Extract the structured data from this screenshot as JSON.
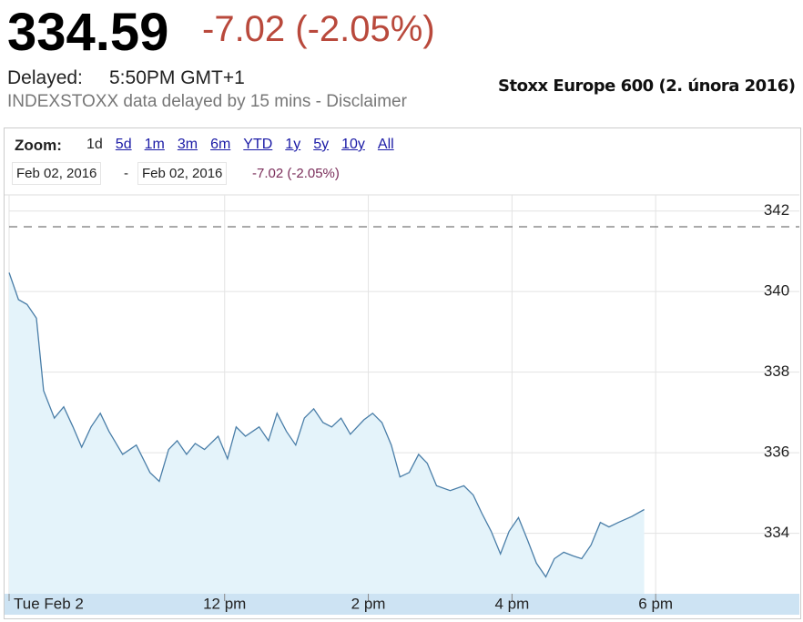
{
  "header": {
    "price": "334.59",
    "change": "-7.02 (-2.05%)",
    "delayed_label": "Delayed:",
    "delayed_time": "5:50PM GMT+1",
    "disclaimer": "INDEXSTOXX data delayed by 15 mins - Disclaimer",
    "caption": "Stoxx Europe 600 (2. února 2016)"
  },
  "toolbar": {
    "zoom_label": "Zoom:",
    "zoom_options": [
      "1d",
      "5d",
      "1m",
      "3m",
      "6m",
      "YTD",
      "1y",
      "5y",
      "10y",
      "All"
    ],
    "zoom_active": 0,
    "date_from": "Feb 02, 2016",
    "date_separator": "-",
    "date_to": "Feb 02, 2016",
    "range_change": "-7.02 (-2.05%)"
  },
  "chart_data": {
    "type": "line",
    "x": [
      9.0,
      9.13,
      9.25,
      9.38,
      9.48,
      9.63,
      9.76,
      9.89,
      10.01,
      10.14,
      10.27,
      10.39,
      10.58,
      10.77,
      10.96,
      11.09,
      11.22,
      11.34,
      11.47,
      11.59,
      11.72,
      11.91,
      12.04,
      12.16,
      12.29,
      12.48,
      12.61,
      12.73,
      12.86,
      12.99,
      13.11,
      13.24,
      13.37,
      13.49,
      13.62,
      13.75,
      13.94,
      14.06,
      14.19,
      14.32,
      14.44,
      14.57,
      14.7,
      14.82,
      14.95,
      15.14,
      15.33,
      15.46,
      15.58,
      15.71,
      15.84,
      15.96,
      16.09,
      16.22,
      16.34,
      16.47,
      16.59,
      16.72,
      16.85,
      16.97,
      17.1,
      17.23,
      17.35,
      17.48,
      17.67,
      17.84
    ],
    "series": [
      {
        "color": "#4a7ea8",
        "fill": "#e4f3fa",
        "values": [
          340.47,
          339.8,
          339.68,
          339.34,
          337.54,
          336.86,
          337.14,
          336.64,
          336.14,
          336.64,
          336.98,
          336.53,
          335.96,
          336.19,
          335.51,
          335.29,
          336.08,
          336.3,
          335.96,
          336.23,
          336.08,
          336.41,
          335.85,
          336.64,
          336.41,
          336.64,
          336.3,
          336.98,
          336.53,
          336.19,
          336.86,
          337.09,
          336.75,
          336.64,
          336.86,
          336.46,
          336.82,
          336.98,
          336.75,
          336.19,
          335.4,
          335.51,
          335.96,
          335.74,
          335.18,
          335.06,
          335.18,
          334.95,
          334.5,
          334.05,
          333.49,
          334.05,
          334.39,
          333.82,
          333.26,
          332.92,
          333.37,
          333.53,
          333.44,
          333.37,
          333.71,
          334.27,
          334.16,
          334.27,
          334.42,
          334.59
        ]
      }
    ],
    "prev_close": 341.61,
    "xlim": [
      9,
      20
    ],
    "xticks": [
      {
        "value": 9,
        "label": "Tue Feb 2"
      },
      {
        "value": 12,
        "label": "12 pm"
      },
      {
        "value": 14,
        "label": "2 pm"
      },
      {
        "value": 16,
        "label": "4 pm"
      },
      {
        "value": 18,
        "label": "6 pm"
      }
    ],
    "ylim": [
      332.5,
      342.4
    ],
    "yticks": [
      334,
      336,
      338,
      340,
      342
    ],
    "grid": true
  }
}
